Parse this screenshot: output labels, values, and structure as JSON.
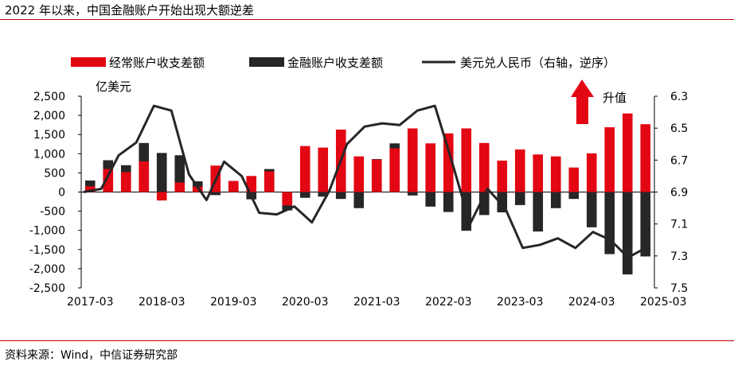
{
  "title": "2022 年以来，中国金融账户开始出现大额逆差",
  "source": "资料来源：Wind，中信证券研究部",
  "colors": {
    "current_account": "#e30613",
    "financial_account": "#262626",
    "fx_line": "#262626",
    "accent_rule": "#c00000",
    "arrow": "#e30613"
  },
  "chart_data": {
    "type": "bar",
    "ylabel_left": "亿美元",
    "ylim_left": [
      -2500,
      2500
    ],
    "yticks_left": [
      "2,500",
      "2,000",
      "1,500",
      "1,000",
      "500",
      "0",
      "-500",
      "-1,000",
      "-1,500",
      "-2,000",
      "-2,500"
    ],
    "ylim_right": [
      7.5,
      6.3
    ],
    "yticks_right": [
      "6.3",
      "6.5",
      "6.7",
      "6.9",
      "7.1",
      "7.3",
      "7.5"
    ],
    "right_axis_inverted": true,
    "annotation": "升值",
    "xtick_labels": [
      "2017-03",
      "2018-03",
      "2019-03",
      "2020-03",
      "2021-03",
      "2022-03",
      "2023-03",
      "2024-03",
      "2025-03"
    ],
    "legend_position": "top",
    "series": [
      {
        "name": "经常账户收支差额",
        "type": "bar",
        "values": [
          150,
          600,
          520,
          800,
          -220,
          250,
          140,
          690,
          290,
          420,
          540,
          -350,
          1200,
          1160,
          1630,
          930,
          850,
          1140,
          1660,
          1270,
          1530,
          1660,
          1280,
          820,
          1110,
          980,
          930,
          640,
          1010,
          1690,
          2050,
          1770
        ]
      },
      {
        "name": "金融账户收支差额",
        "type": "bar",
        "values": [
          300,
          830,
          700,
          1280,
          1020,
          960,
          280,
          -80,
          280,
          -190,
          600,
          -480,
          -150,
          -120,
          -180,
          -420,
          860,
          1270,
          -90,
          -380,
          -520,
          -1010,
          -600,
          -530,
          -340,
          -1030,
          -420,
          -180,
          -920,
          -1620,
          -2150,
          -1680
        ]
      },
      {
        "name": "美元兑人民币（右轴，逆序）",
        "type": "line",
        "axis": "right",
        "values": [
          6.9,
          6.88,
          6.67,
          6.59,
          6.36,
          6.39,
          6.79,
          6.95,
          6.71,
          6.8,
          7.03,
          7.04,
          6.99,
          7.09,
          6.89,
          6.6,
          6.49,
          6.47,
          6.48,
          6.39,
          6.36,
          6.72,
          7.1,
          6.88,
          7.0,
          7.25,
          7.23,
          7.19,
          7.25,
          7.15,
          7.2,
          7.31,
          7.25
        ]
      }
    ]
  }
}
